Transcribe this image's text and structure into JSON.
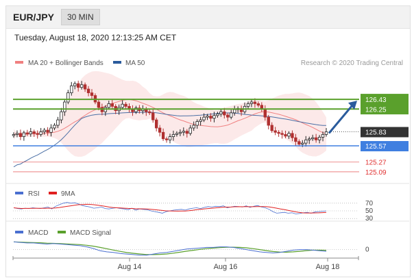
{
  "header": {
    "pair": "EUR/JPY",
    "timeframe": "30 MIN"
  },
  "timestamp": "Tuesday, August 18, 2020 12:13:25 AM CET",
  "legend": {
    "ma20": "MA 20 + Bollinger Bands",
    "ma50": "MA 50"
  },
  "credit": "Research © 2020 Trading Central",
  "rsi_legend": {
    "rsi": "RSI",
    "ma": "9MA"
  },
  "macd_legend": {
    "macd": "MACD",
    "signal": "MACD Signal"
  },
  "colors": {
    "resistance": "#5aa02c",
    "support": "#3f7fe0",
    "current": "#333333",
    "minor_support": "#e03030",
    "arrow": "#2a5b9c",
    "ma20": "#f08080",
    "ma50": "#4a6fa5",
    "bollinger": "#fadada",
    "up_candle": "#222222",
    "down_candle": "#b03030"
  },
  "chart_data": [
    {
      "type": "candlestick",
      "x_labels": [
        "Aug 14",
        "Aug 16",
        "Aug 18"
      ],
      "ylim": [
        124.95,
        126.95
      ],
      "close": [
        125.78,
        125.8,
        125.74,
        125.81,
        125.79,
        125.83,
        125.8,
        125.78,
        125.83,
        125.86,
        125.82,
        125.9,
        125.95,
        126.05,
        126.2,
        126.38,
        126.55,
        126.68,
        126.72,
        126.65,
        126.7,
        126.62,
        126.55,
        126.5,
        126.38,
        126.28,
        126.2,
        126.28,
        126.35,
        126.3,
        126.22,
        126.28,
        126.34,
        126.3,
        126.25,
        126.2,
        126.27,
        126.22,
        126.25,
        126.2,
        126.18,
        126.05,
        125.9,
        125.82,
        125.7,
        125.68,
        125.74,
        125.78,
        125.8,
        125.82,
        125.84,
        125.8,
        125.9,
        125.95,
        126.02,
        126.05,
        126.1,
        126.12,
        126.08,
        126.13,
        126.16,
        126.2,
        126.14,
        126.1,
        126.18,
        126.24,
        126.26,
        126.2,
        126.3,
        126.35,
        126.38,
        126.35,
        126.32,
        126.25,
        126.1,
        125.95,
        125.85,
        125.82,
        125.8,
        125.78,
        125.75,
        125.8,
        125.72,
        125.65,
        125.6,
        125.62,
        125.68,
        125.7,
        125.72,
        125.68,
        125.73,
        125.78,
        125.83
      ],
      "levels": {
        "resistance": [
          126.43,
          126.25
        ],
        "current": 125.83,
        "support": 125.57,
        "minor_support": [
          125.27,
          125.09
        ]
      },
      "arrow_target": 126.43
    },
    {
      "type": "line",
      "name": "RSI",
      "levels": [
        "70",
        "50",
        "30"
      ],
      "values": [
        58,
        56,
        55,
        57,
        56,
        58,
        57,
        56,
        58,
        60,
        55,
        62,
        66,
        70,
        72,
        70,
        71,
        68,
        64,
        62,
        60,
        57,
        58,
        60,
        56,
        55,
        57,
        58,
        56,
        55,
        53,
        57,
        52,
        55,
        54,
        53,
        50,
        48,
        46,
        44,
        48,
        50,
        52,
        53,
        54,
        52,
        55,
        57,
        58,
        56,
        59,
        61,
        60,
        62,
        61,
        63,
        58,
        60,
        62,
        61,
        60,
        63,
        59,
        62,
        64,
        60,
        58,
        54,
        48,
        44,
        45,
        46,
        44,
        45,
        42,
        43,
        45,
        46,
        44,
        47,
        48,
        49,
        50
      ]
    },
    {
      "type": "line",
      "name": "MACD",
      "levels": [
        "0"
      ],
      "values": [
        0.14,
        0.13,
        0.12,
        0.12,
        0.11,
        0.1,
        0.11,
        0.1,
        0.09,
        0.08,
        0.07,
        0.05,
        0.02,
        -0.02,
        -0.04,
        -0.05,
        -0.07,
        -0.08,
        -0.09,
        -0.1,
        -0.1,
        -0.08,
        -0.06,
        -0.05,
        -0.03,
        -0.01,
        0.01,
        0.02,
        0.03,
        0.04,
        0.04,
        0.05,
        0.05,
        0.04,
        0.02,
        0.0,
        -0.02,
        -0.04,
        -0.05,
        -0.06,
        -0.05,
        -0.03,
        -0.01,
        0.0,
        0.0,
        -0.01,
        -0.02,
        -0.03
      ]
    }
  ]
}
